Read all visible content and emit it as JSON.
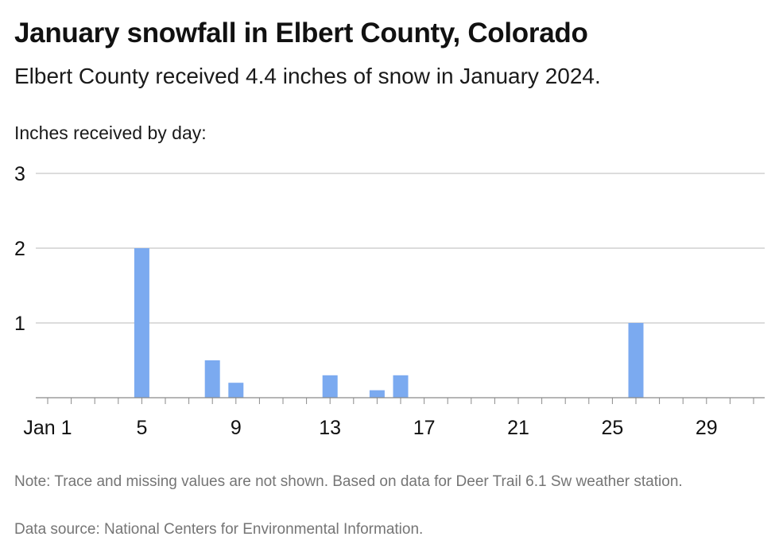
{
  "chart_data": {
    "type": "bar",
    "title": "January snowfall in Elbert County, Colorado",
    "subtitle": "Elbert County received 4.4 inches of snow in January 2024.",
    "ylabel": "Inches received by day:",
    "xlabel": "",
    "x": [
      5,
      8,
      9,
      13,
      15,
      16,
      26
    ],
    "values": [
      2.0,
      0.5,
      0.2,
      0.3,
      0.1,
      0.3,
      1.0
    ],
    "xlim": [
      1,
      31
    ],
    "x_ticks": [
      1,
      5,
      9,
      13,
      17,
      21,
      25,
      29
    ],
    "x_tick_labels": [
      "Jan 1",
      "5",
      "9",
      "13",
      "17",
      "21",
      "25",
      "29"
    ],
    "ylim": [
      0,
      3
    ],
    "y_ticks": [
      1,
      2,
      3
    ],
    "y_tick_labels": [
      "1",
      "2",
      "3"
    ],
    "grid": true,
    "bar_color": "#7baaf0",
    "note": "Note: Trace and missing values are not shown. Based on data for Deer Trail 6.1 Sw weather station.",
    "source": "Data source: National Centers for Environmental Information."
  }
}
